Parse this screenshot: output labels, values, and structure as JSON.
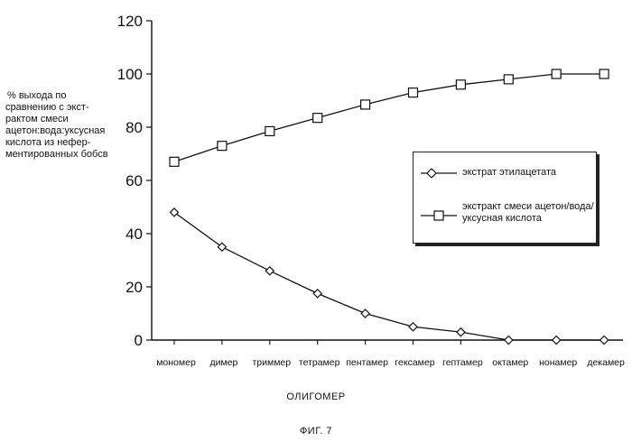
{
  "chart_data": {
    "type": "line",
    "title": "",
    "caption": "ФИГ. 7",
    "xlabel": "ОЛИГОМЕР",
    "ylabel_lines": [
      "% выхода по",
      "сравнению с экст-",
      "рактом смеси",
      "ацетон:вода:уксусная",
      "кислота из  нефер-",
      "ментированных бобсв"
    ],
    "categories": [
      "мономер",
      "димер",
      "триммер",
      "тетрамер",
      "пентамер",
      "гексамер",
      "гептамер",
      "октамер",
      "нонамер",
      "декамер"
    ],
    "ylim": [
      0,
      120
    ],
    "yticks": [
      "0",
      "20",
      "40",
      "60",
      "80",
      "100",
      "120"
    ],
    "grid": false,
    "legend_position": "right",
    "series": [
      {
        "name": "экстрат этилацетата",
        "label_lines": [
          "экстрат этилацетата"
        ],
        "marker": "diamond",
        "values": [
          48,
          35,
          26,
          17.5,
          10,
          5,
          3,
          0,
          0,
          0
        ]
      },
      {
        "name": "экстракт смеси ацетон/вода/ уксусная кислота",
        "label_lines": [
          "экстракт смеси ацетон/вода/",
          "уксусная кислота"
        ],
        "marker": "square",
        "values": [
          67,
          73,
          78.5,
          83.5,
          88.5,
          93,
          96,
          98,
          100,
          100
        ]
      }
    ]
  }
}
